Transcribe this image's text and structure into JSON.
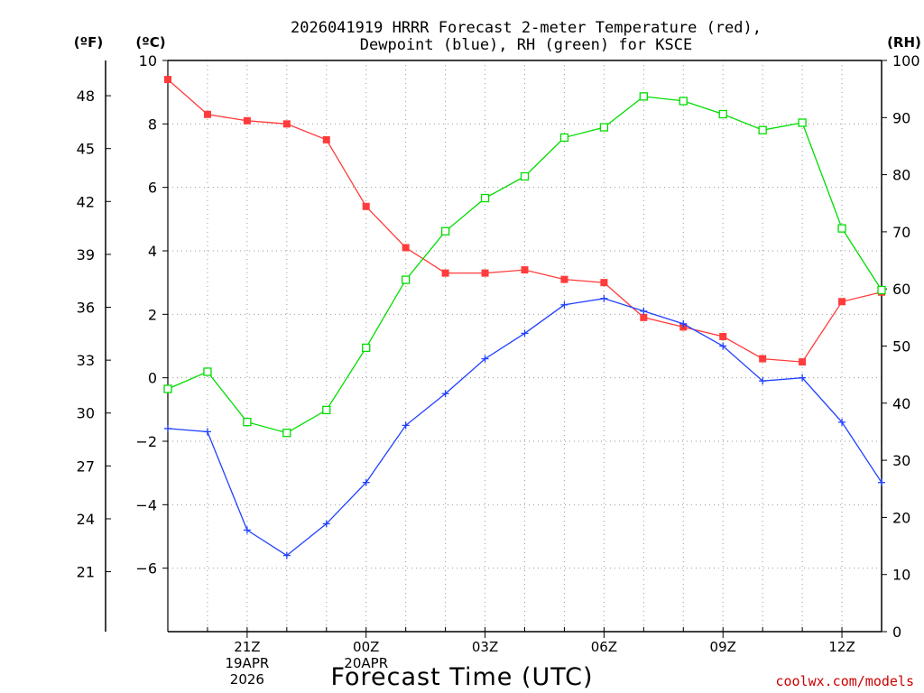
{
  "chart_data": {
    "type": "line",
    "title": [
      "2026041919 HRRR Forecast 2-meter Temperature (red),",
      "Dewpoint (blue), RH (green) for KSCE"
    ],
    "xlabel": "Forecast Time (UTC)",
    "left_outer_unit": "(ºF)",
    "left_unit": "(ºC)",
    "right_unit": "(RH)",
    "credit": "coolwx.com/models",
    "hours": [
      19,
      20,
      21,
      22,
      23,
      24,
      25,
      26,
      27,
      28,
      29,
      30,
      31,
      32,
      33,
      34,
      35,
      36,
      37
    ],
    "xlim": [
      19,
      37
    ],
    "x_ticks": [
      {
        "hour": 21,
        "lines": [
          "21Z",
          "19APR",
          "2026"
        ]
      },
      {
        "hour": 24,
        "lines": [
          "00Z",
          "20APR"
        ]
      },
      {
        "hour": 27,
        "lines": [
          "03Z"
        ]
      },
      {
        "hour": 30,
        "lines": [
          "06Z"
        ]
      },
      {
        "hour": 33,
        "lines": [
          "09Z"
        ]
      },
      {
        "hour": 36,
        "lines": [
          "12Z"
        ]
      }
    ],
    "celsius_axis": {
      "ylim": [
        -8,
        10
      ],
      "ticks": [
        -6,
        -4,
        -2,
        0,
        2,
        4,
        6,
        8,
        10
      ],
      "tick_labels": [
        "−6",
        "−4",
        "−2",
        "0",
        "2",
        "4",
        "6",
        "8",
        "10"
      ]
    },
    "fahrenheit_axis": {
      "ticks": [
        21,
        24,
        27,
        30,
        33,
        36,
        39,
        42,
        45,
        48
      ],
      "tick_labels": [
        "21",
        "24",
        "27",
        "30",
        "33",
        "36",
        "39",
        "42",
        "45",
        "48"
      ]
    },
    "rh_axis": {
      "ylim": [
        0,
        100
      ],
      "ticks": [
        0,
        10,
        20,
        30,
        40,
        50,
        60,
        70,
        80,
        90,
        100
      ],
      "tick_labels": [
        "0",
        "10",
        "20",
        "30",
        "40",
        "50",
        "60",
        "70",
        "80",
        "90",
        "100"
      ]
    },
    "series": [
      {
        "name": "Temperature",
        "axis": "celsius",
        "color": "#ff3b3b",
        "marker": "filled-square",
        "values": [
          9.4,
          8.3,
          8.1,
          8.0,
          7.5,
          5.4,
          4.1,
          3.3,
          3.3,
          3.4,
          3.1,
          3.0,
          1.9,
          1.6,
          1.3,
          0.6,
          0.5,
          2.4,
          2.7
        ]
      },
      {
        "name": "Dewpoint",
        "axis": "celsius",
        "color": "#2040ff",
        "marker": "plus",
        "values": [
          -1.6,
          -1.7,
          -4.8,
          -5.6,
          -4.6,
          -3.3,
          -1.5,
          -0.5,
          0.6,
          1.4,
          2.3,
          2.5,
          2.1,
          1.7,
          1.0,
          -0.1,
          0.0,
          -1.4,
          -3.3
        ]
      },
      {
        "name": "RH",
        "axis": "rh",
        "color": "#00dd00",
        "marker": "open-square",
        "values": [
          42.5,
          45.5,
          36.7,
          34.8,
          38.8,
          49.7,
          61.6,
          70.1,
          75.9,
          79.7,
          86.5,
          88.3,
          93.7,
          92.9,
          90.6,
          87.8,
          89.1,
          70.6,
          59.8
        ]
      }
    ]
  }
}
